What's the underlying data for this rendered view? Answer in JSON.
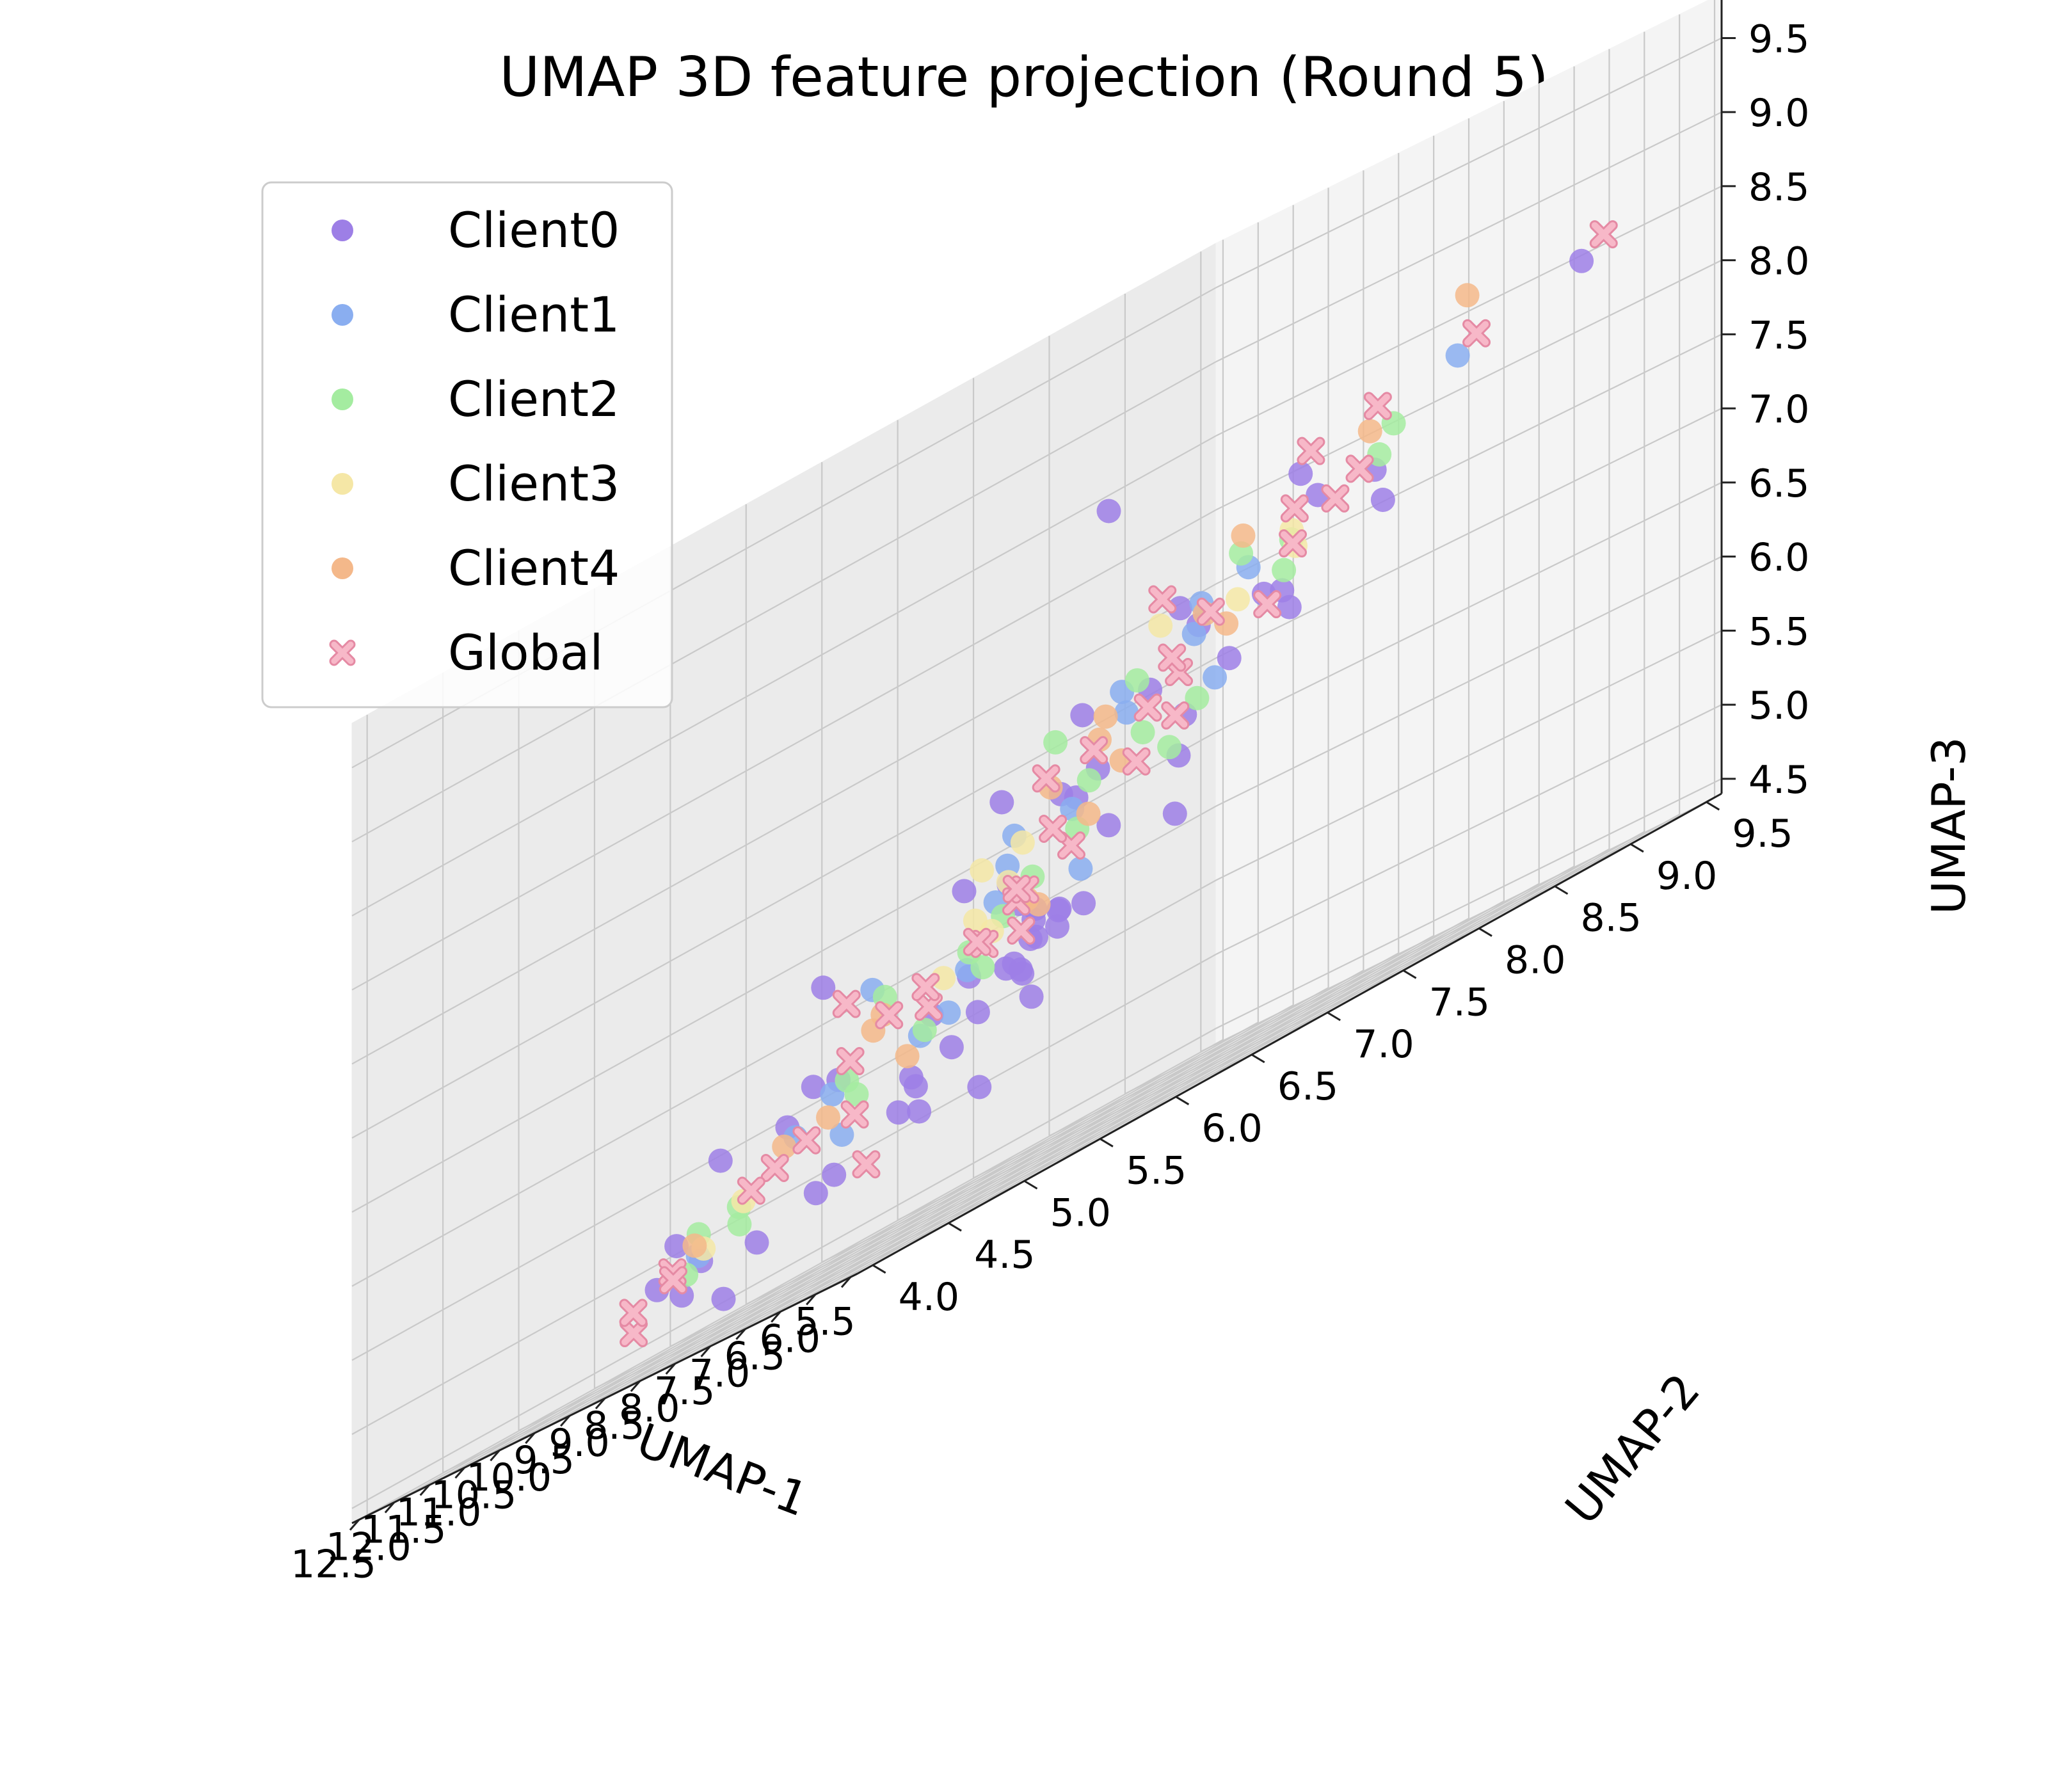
{
  "chart_data": {
    "type": "scatter",
    "projection": "3d",
    "title": "UMAP 3D feature projection (Round 5)",
    "xlabel": "UMAP-1",
    "ylabel": "UMAP-2",
    "zlabel": "UMAP-3",
    "xlim": [
      5.4,
      12.6
    ],
    "ylim": [
      3.9,
      9.6
    ],
    "zlim": [
      4.4,
      9.8
    ],
    "xticks": [
      "5.5",
      "6.0",
      "6.5",
      "7.0",
      "7.5",
      "8.0",
      "8.5",
      "9.0",
      "9.5",
      "10.0",
      "10.5",
      "11.0",
      "11.5",
      "12.0",
      "12.5"
    ],
    "yticks": [
      "4.0",
      "4.5",
      "5.0",
      "5.5",
      "6.0",
      "6.5",
      "7.0",
      "7.5",
      "8.0",
      "8.5",
      "9.0",
      "9.5"
    ],
    "zticks": [
      "4.5",
      "5.0",
      "5.5",
      "6.0",
      "6.5",
      "7.0",
      "7.5",
      "8.0",
      "8.5",
      "9.0",
      "9.5"
    ],
    "grid": true,
    "legend_position": "upper-left",
    "series": [
      {
        "name": "Client0",
        "color": "#9d7fe6",
        "marker": "circle",
        "points": [
          [
            8.9,
            6.7,
            5.9
          ],
          [
            9.0,
            6.6,
            5.8
          ],
          [
            8.8,
            6.8,
            6.0
          ],
          [
            9.1,
            6.7,
            5.7
          ],
          [
            8.9,
            6.5,
            5.8
          ],
          [
            9.2,
            6.8,
            5.9
          ],
          [
            8.7,
            6.6,
            6.1
          ],
          [
            9.0,
            6.9,
            6.0
          ],
          [
            9.3,
            6.5,
            5.6
          ],
          [
            8.6,
            6.7,
            5.9
          ],
          [
            9.4,
            6.9,
            5.5
          ],
          [
            8.5,
            6.4,
            6.2
          ],
          [
            9.6,
            6.2,
            5.4
          ],
          [
            8.3,
            6.9,
            6.4
          ],
          [
            10.0,
            6.3,
            5.2
          ],
          [
            9.8,
            7.1,
            6.0
          ],
          [
            10.4,
            6.6,
            5.3
          ],
          [
            10.7,
            6.2,
            5.0
          ],
          [
            10.2,
            7.2,
            5.7
          ],
          [
            11.0,
            6.9,
            5.1
          ],
          [
            10.5,
            5.8,
            5.5
          ],
          [
            9.7,
            5.6,
            5.7
          ],
          [
            8.2,
            5.9,
            6.5
          ],
          [
            7.9,
            6.4,
            6.8
          ],
          [
            8.6,
            7.5,
            6.6
          ],
          [
            9.3,
            7.8,
            6.2
          ],
          [
            10.6,
            7.8,
            5.9
          ],
          [
            11.4,
            7.3,
            5.4
          ],
          [
            11.8,
            7.6,
            5.8
          ],
          [
            12.0,
            8.4,
            6.6
          ],
          [
            11.6,
            8.9,
            7.5
          ],
          [
            12.2,
            9.3,
            7.3
          ],
          [
            7.2,
            8.2,
            7.6
          ],
          [
            6.4,
            7.4,
            7.9
          ],
          [
            6.8,
            5.5,
            7.0
          ],
          [
            7.4,
            4.6,
            6.4
          ],
          [
            8.0,
            4.2,
            5.6
          ],
          [
            9.2,
            4.5,
            4.8
          ],
          [
            10.2,
            4.8,
            4.9
          ],
          [
            11.0,
            5.3,
            5.1
          ],
          [
            11.8,
            6.2,
            4.8
          ],
          [
            12.3,
            7.9,
            5.0
          ],
          [
            6.3,
            5.8,
            7.3
          ],
          [
            7.6,
            7.6,
            7.4
          ],
          [
            9.5,
            8.6,
            7.3
          ],
          [
            10.9,
            8.9,
            7.0
          ],
          [
            8.4,
            8.7,
            7.8
          ],
          [
            10.1,
            9.0,
            8.0
          ],
          [
            11.3,
            5.6,
            4.9
          ],
          [
            9.9,
            5.1,
            4.6
          ],
          [
            8.8,
            5.2,
            5.0
          ],
          [
            7.8,
            5.5,
            5.8
          ],
          [
            7.0,
            6.8,
            6.9
          ],
          [
            10.8,
            7.4,
            6.3
          ],
          [
            9.1,
            7.2,
            6.8
          ],
          [
            11.5,
            6.6,
            5.6
          ],
          [
            8.1,
            8.0,
            7.2
          ],
          [
            10.3,
            8.1,
            7.1
          ],
          [
            6.1,
            9.0,
            8.5
          ],
          [
            12.4,
            8.8,
            8.4
          ]
        ]
      },
      {
        "name": "Client1",
        "color": "#8aaef0",
        "marker": "circle",
        "points": [
          [
            8.7,
            6.9,
            6.2
          ],
          [
            9.5,
            6.4,
            5.7
          ],
          [
            10.1,
            6.8,
            5.9
          ],
          [
            8.4,
            6.2,
            6.3
          ],
          [
            9.9,
            7.4,
            6.6
          ],
          [
            11.2,
            7.0,
            5.6
          ],
          [
            7.7,
            6.0,
            6.7
          ],
          [
            10.6,
            5.9,
            5.4
          ],
          [
            9.0,
            5.4,
            5.6
          ],
          [
            11.9,
            7.9,
            6.4
          ],
          [
            7.3,
            7.0,
            7.4
          ],
          [
            8.3,
            7.6,
            7.0
          ],
          [
            10.0,
            8.3,
            7.5
          ],
          [
            6.6,
            6.2,
            7.3
          ],
          [
            11.5,
            8.5,
            7.0
          ],
          [
            9.4,
            4.7,
            5.0
          ],
          [
            12.1,
            6.9,
            5.2
          ],
          [
            7.0,
            8.6,
            8.3
          ],
          [
            10.8,
            6.5,
            6.1
          ],
          [
            8.9,
            8.1,
            7.6
          ]
        ]
      },
      {
        "name": "Client2",
        "color": "#a4eca0",
        "marker": "circle",
        "points": [
          [
            8.8,
            6.3,
            5.9
          ],
          [
            9.6,
            7.0,
            6.3
          ],
          [
            10.3,
            6.1,
            5.6
          ],
          [
            8.1,
            6.6,
            6.5
          ],
          [
            7.5,
            6.4,
            6.8
          ],
          [
            11.1,
            7.5,
            6.1
          ],
          [
            9.2,
            7.9,
            6.9
          ],
          [
            10.7,
            8.2,
            7.2
          ],
          [
            6.9,
            5.9,
            7.2
          ],
          [
            7.6,
            5.1,
            6.1
          ],
          [
            8.6,
            4.6,
            5.2
          ],
          [
            10.0,
            4.9,
            4.9
          ],
          [
            11.4,
            5.9,
            5.0
          ],
          [
            12.0,
            7.4,
            5.6
          ],
          [
            11.7,
            8.7,
            6.8
          ],
          [
            6.4,
            7.9,
            8.1
          ],
          [
            7.9,
            8.5,
            7.9
          ],
          [
            9.8,
            8.8,
            7.6
          ],
          [
            6.2,
            6.8,
            7.8
          ],
          [
            10.5,
            7.0,
            6.0
          ],
          [
            8.3,
            7.3,
            6.7
          ],
          [
            9.3,
            5.7,
            5.5
          ],
          [
            12.3,
            8.2,
            6.1
          ],
          [
            7.1,
            7.5,
            7.5
          ],
          [
            10.9,
            5.4,
            5.1
          ]
        ]
      },
      {
        "name": "Client3",
        "color": "#f5e7a6",
        "marker": "circle",
        "points": [
          [
            9.1,
            6.5,
            6.1
          ],
          [
            10.2,
            6.9,
            6.2
          ],
          [
            8.0,
            6.1,
            6.4
          ],
          [
            7.3,
            5.6,
            6.6
          ],
          [
            11.3,
            7.2,
            5.9
          ],
          [
            9.7,
            8.4,
            7.4
          ],
          [
            6.7,
            6.5,
            7.6
          ],
          [
            10.4,
            5.2,
            5.0
          ],
          [
            8.5,
            8.2,
            7.7
          ],
          [
            11.9,
            8.0,
            6.5
          ],
          [
            7.8,
            7.9,
            7.6
          ],
          [
            9.4,
            5.0,
            5.2
          ]
        ]
      },
      {
        "name": "Client4",
        "color": "#f4b88a",
        "marker": "circle",
        "points": [
          [
            8.6,
            6.5,
            6.2
          ],
          [
            9.3,
            6.9,
            6.1
          ],
          [
            7.9,
            6.8,
            6.8
          ],
          [
            10.1,
            7.6,
            6.5
          ],
          [
            7.4,
            6.1,
            6.9
          ],
          [
            8.2,
            5.3,
            5.9
          ],
          [
            11.0,
            6.3,
            5.4
          ],
          [
            6.6,
            7.0,
            7.9
          ],
          [
            9.0,
            8.0,
            7.3
          ],
          [
            10.6,
            8.6,
            7.4
          ],
          [
            7.2,
            4.9,
            6.0
          ],
          [
            8.8,
            4.4,
            5.1
          ],
          [
            6.0,
            8.2,
            8.7
          ],
          [
            11.6,
            7.1,
            5.5
          ],
          [
            9.9,
            5.5,
            5.4
          ],
          [
            7.6,
            8.3,
            8.1
          ],
          [
            12.1,
            8.6,
            6.9
          ],
          [
            6.4,
            6.0,
            7.2
          ]
        ]
      },
      {
        "name": "Global",
        "color": "#f7b8c8",
        "marker": "x",
        "points": [
          [
            8.9,
            6.6,
            6.0
          ],
          [
            9.4,
            6.8,
            6.2
          ],
          [
            10.0,
            6.5,
            5.8
          ],
          [
            8.4,
            6.7,
            6.4
          ],
          [
            7.8,
            6.3,
            6.6
          ],
          [
            10.5,
            7.1,
            6.0
          ],
          [
            9.2,
            7.5,
            6.7
          ],
          [
            11.0,
            7.6,
            6.2
          ],
          [
            7.3,
            6.9,
            7.2
          ],
          [
            8.1,
            5.6,
            6.0
          ],
          [
            9.6,
            5.3,
            5.3
          ],
          [
            10.8,
            5.7,
            5.2
          ],
          [
            11.7,
            6.8,
            5.3
          ],
          [
            12.2,
            8.1,
            6.2
          ],
          [
            11.5,
            8.8,
            7.2
          ],
          [
            10.3,
            8.5,
            7.4
          ],
          [
            8.7,
            8.3,
            7.6
          ],
          [
            7.1,
            8.0,
            7.9
          ],
          [
            6.3,
            7.2,
            7.9
          ],
          [
            6.6,
            5.7,
            7.0
          ],
          [
            7.5,
            4.8,
            6.2
          ],
          [
            8.9,
            4.3,
            5.0
          ],
          [
            10.1,
            4.6,
            4.7
          ],
          [
            11.4,
            5.2,
            4.8
          ],
          [
            12.4,
            7.2,
            4.9
          ],
          [
            12.5,
            9.2,
            7.6
          ],
          [
            6.0,
            9.1,
            8.6
          ],
          [
            6.3,
            8.4,
            8.4
          ],
          [
            9.0,
            9.0,
            8.2
          ],
          [
            10.6,
            9.3,
            8.1
          ],
          [
            8.2,
            7.9,
            7.3
          ],
          [
            9.9,
            7.9,
            7.0
          ],
          [
            10.9,
            6.4,
            5.7
          ],
          [
            8.5,
            5.0,
            5.4
          ],
          [
            7.0,
            6.2,
            7.0
          ],
          [
            11.9,
            7.7,
            6.0
          ],
          [
            9.7,
            6.1,
            5.9
          ],
          [
            8.0,
            7.2,
            6.9
          ],
          [
            10.4,
            5.0,
            4.9
          ],
          [
            6.8,
            7.7,
            7.8
          ]
        ]
      }
    ]
  }
}
